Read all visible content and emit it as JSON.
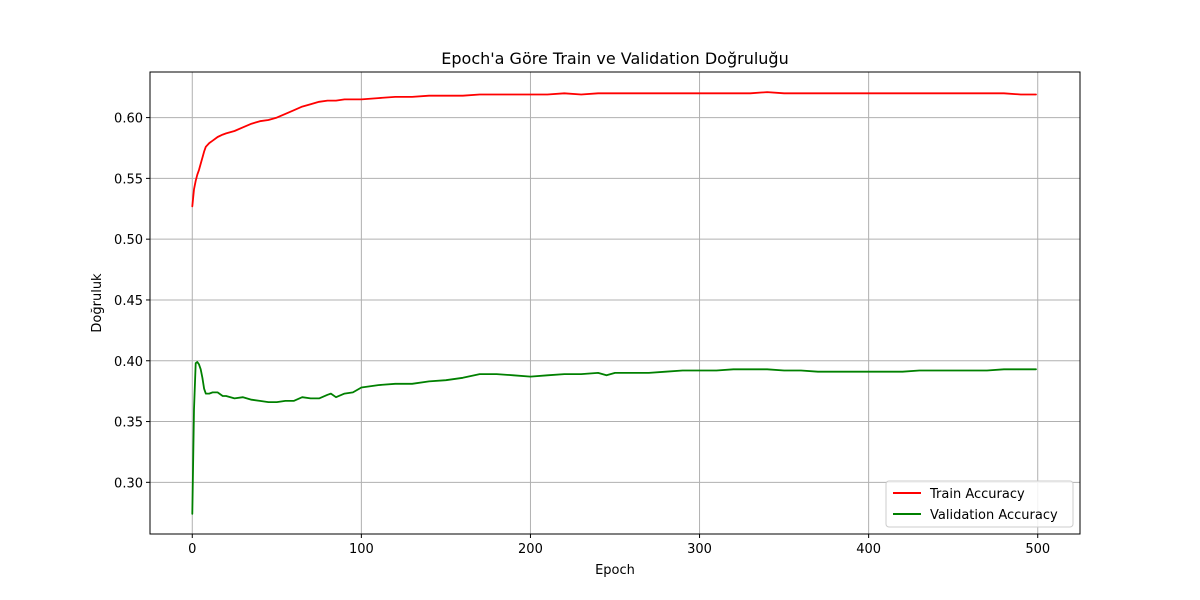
{
  "chart_data": {
    "type": "line",
    "title": "Epoch'a Göre Train ve Validation Doğruluğu",
    "xlabel": "Epoch",
    "ylabel": "Doğruluk",
    "xlim": [
      -25,
      525
    ],
    "ylim": [
      0.2575,
      0.6375
    ],
    "xticks": [
      0,
      100,
      200,
      300,
      400,
      500
    ],
    "yticks": [
      0.3,
      0.35,
      0.4,
      0.45,
      0.5,
      0.55,
      0.6
    ],
    "grid": true,
    "legend_position": "bottom-right",
    "series": [
      {
        "name": "Train Accuracy",
        "color": "#ff0000",
        "x": [
          0,
          1,
          2,
          3,
          4,
          5,
          6,
          7,
          8,
          10,
          12,
          15,
          18,
          20,
          25,
          30,
          35,
          40,
          45,
          50,
          55,
          60,
          65,
          70,
          75,
          80,
          85,
          90,
          100,
          110,
          120,
          130,
          140,
          150,
          160,
          170,
          180,
          190,
          200,
          210,
          220,
          230,
          240,
          250,
          260,
          270,
          280,
          290,
          300,
          310,
          320,
          330,
          340,
          350,
          360,
          370,
          380,
          390,
          400,
          410,
          420,
          430,
          440,
          450,
          460,
          470,
          480,
          490,
          499
        ],
        "y": [
          0.527,
          0.541,
          0.548,
          0.553,
          0.557,
          0.562,
          0.567,
          0.572,
          0.576,
          0.579,
          0.581,
          0.584,
          0.586,
          0.587,
          0.589,
          0.592,
          0.595,
          0.597,
          0.598,
          0.6,
          0.603,
          0.606,
          0.609,
          0.611,
          0.613,
          0.614,
          0.614,
          0.615,
          0.615,
          0.616,
          0.617,
          0.617,
          0.618,
          0.618,
          0.618,
          0.619,
          0.619,
          0.619,
          0.619,
          0.619,
          0.62,
          0.619,
          0.62,
          0.62,
          0.62,
          0.62,
          0.62,
          0.62,
          0.62,
          0.62,
          0.62,
          0.62,
          0.621,
          0.62,
          0.62,
          0.62,
          0.62,
          0.62,
          0.62,
          0.62,
          0.62,
          0.62,
          0.62,
          0.62,
          0.62,
          0.62,
          0.62,
          0.619,
          0.619
        ]
      },
      {
        "name": "Validation Accuracy",
        "color": "#008000",
        "x": [
          0,
          1,
          2,
          3,
          4,
          5,
          6,
          7,
          8,
          10,
          12,
          15,
          18,
          20,
          25,
          30,
          35,
          40,
          45,
          50,
          55,
          60,
          65,
          70,
          75,
          80,
          82,
          85,
          90,
          95,
          100,
          110,
          120,
          130,
          140,
          150,
          160,
          170,
          180,
          190,
          200,
          210,
          220,
          230,
          240,
          245,
          250,
          260,
          270,
          280,
          290,
          300,
          310,
          320,
          330,
          340,
          350,
          360,
          370,
          380,
          390,
          400,
          410,
          420,
          430,
          440,
          450,
          460,
          470,
          480,
          490,
          499
        ],
        "y": [
          0.274,
          0.36,
          0.398,
          0.399,
          0.397,
          0.393,
          0.386,
          0.377,
          0.373,
          0.373,
          0.374,
          0.374,
          0.371,
          0.371,
          0.369,
          0.37,
          0.368,
          0.367,
          0.366,
          0.366,
          0.367,
          0.367,
          0.37,
          0.369,
          0.369,
          0.372,
          0.373,
          0.37,
          0.373,
          0.374,
          0.378,
          0.38,
          0.381,
          0.381,
          0.383,
          0.384,
          0.386,
          0.389,
          0.389,
          0.388,
          0.387,
          0.388,
          0.389,
          0.389,
          0.39,
          0.388,
          0.39,
          0.39,
          0.39,
          0.391,
          0.392,
          0.392,
          0.392,
          0.393,
          0.393,
          0.393,
          0.392,
          0.392,
          0.391,
          0.391,
          0.391,
          0.391,
          0.391,
          0.391,
          0.392,
          0.392,
          0.392,
          0.392,
          0.392,
          0.393,
          0.393,
          0.393
        ]
      }
    ]
  }
}
